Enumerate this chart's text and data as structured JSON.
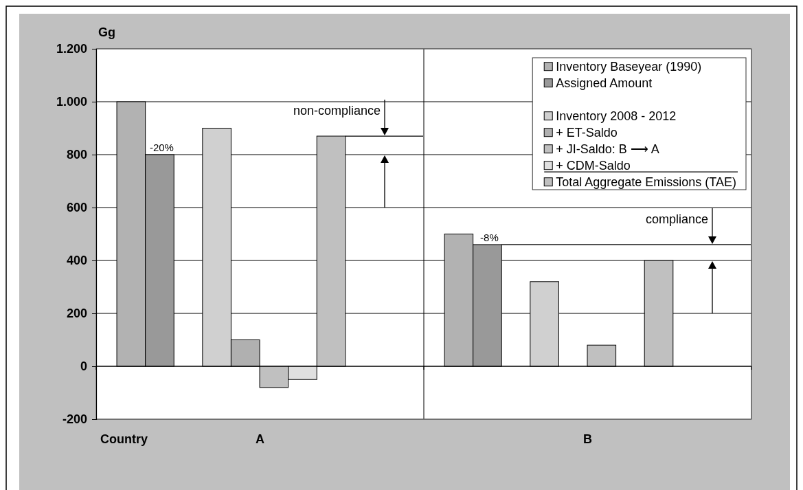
{
  "chart_data": {
    "type": "bar",
    "xlabel": "Country",
    "ylabel": "Gg",
    "categories": [
      "A",
      "B"
    ],
    "series": [
      {
        "name": "Inventory Baseyear (1990)",
        "color": "#b2b2b2",
        "values": [
          1000,
          500
        ]
      },
      {
        "name": "Assigned Amount",
        "color": "#999999",
        "values": [
          800,
          460
        ]
      },
      {
        "values": [
          null,
          null
        ]
      },
      {
        "name": "Inventory 2008 - 2012",
        "color": "#d0d0d0",
        "values": [
          900,
          320
        ]
      },
      {
        "name": "+ ET-Saldo",
        "color": "#b0b0b0",
        "values": [
          100,
          null
        ]
      },
      {
        "name": "+ JI-Saldo: B ⟶ A",
        "color": "#c0c0c0",
        "values": [
          -80,
          80
        ]
      },
      {
        "name": "+ CDM-Saldo",
        "color": "#e0e0e0",
        "values": [
          -50,
          null
        ]
      },
      {
        "name": "Total Aggregate Emissions (TAE)",
        "color": "#c0c0c0",
        "values": [
          870,
          400
        ]
      }
    ],
    "ylim": [
      -200,
      1200
    ],
    "yticks": [
      -200,
      0,
      200,
      400,
      600,
      800,
      {
        "value": 1000,
        "label": "1.000"
      },
      {
        "value": 1200,
        "label": "1.200"
      }
    ],
    "grid": true,
    "legend": "top right",
    "annotations": [
      "-20%",
      "-8%",
      "non-compliance",
      "compliance"
    ]
  }
}
